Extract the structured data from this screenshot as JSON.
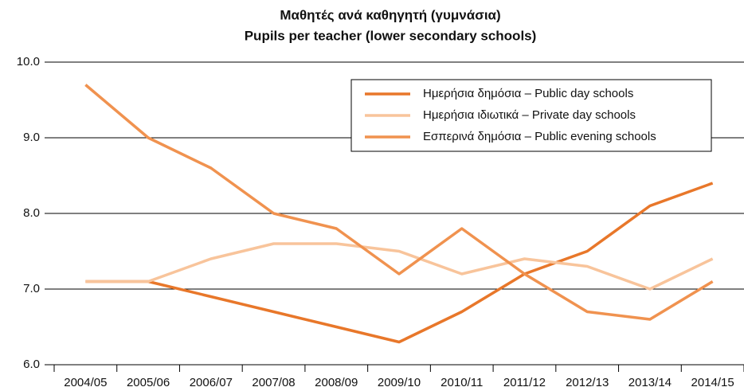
{
  "chart_data": {
    "type": "line",
    "title": "Μαθητές ανά καθηγητή (γυμνάσια)",
    "subtitle": "Pupils per teacher (lower secondary schools)",
    "categories": [
      "2004/05",
      "2005/06",
      "2006/07",
      "2007/08",
      "2008/09",
      "2009/10",
      "2010/11",
      "2011/12",
      "2012/13",
      "2013/14",
      "2014/15"
    ],
    "series": [
      {
        "name": "Ημερήσια δημόσια – Public day schools",
        "color": "#e8772a",
        "values": [
          7.1,
          7.1,
          6.9,
          6.7,
          6.5,
          6.3,
          6.7,
          7.2,
          7.5,
          8.1,
          8.4
        ]
      },
      {
        "name": "Ημερήσια ιδιωτικά – Private day schools",
        "color": "#f8c49b",
        "values": [
          7.1,
          7.1,
          7.4,
          7.6,
          7.6,
          7.5,
          7.2,
          7.4,
          7.3,
          7.0,
          7.4
        ]
      },
      {
        "name": "Εσπερινά δημόσια – Public evening schools",
        "color": "#f0924f",
        "values": [
          9.7,
          9.0,
          8.6,
          8.0,
          7.8,
          7.2,
          7.8,
          7.2,
          6.7,
          6.6,
          7.1
        ]
      }
    ],
    "ylim": [
      6,
      10
    ],
    "yticks": [
      {
        "value": 6,
        "label": "6.0"
      },
      {
        "value": 7,
        "label": "7.0"
      },
      {
        "value": 8,
        "label": "8.0"
      },
      {
        "value": 9,
        "label": "9.0"
      },
      {
        "value": 10,
        "label": "10.0"
      }
    ],
    "grid": true,
    "legend": "top-right"
  }
}
